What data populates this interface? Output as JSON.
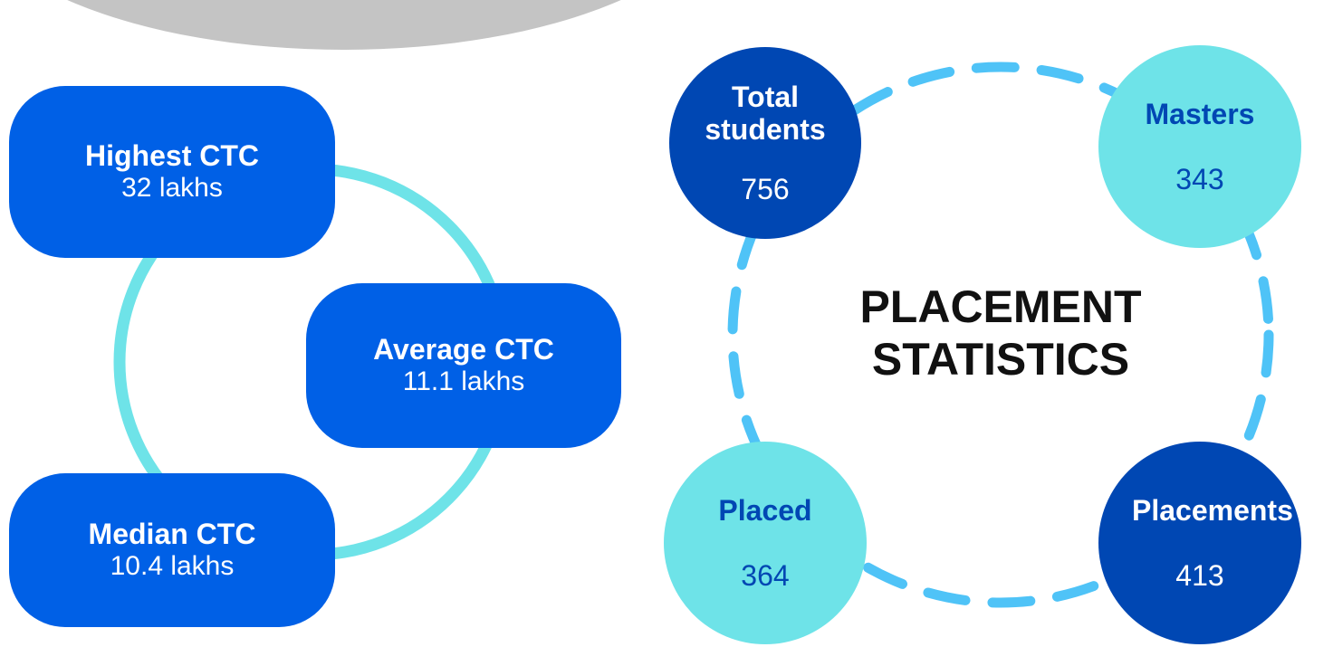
{
  "ctc": [
    {
      "label": "Highest CTC",
      "value": "32 lakhs"
    },
    {
      "label": "Average CTC",
      "value": "11.1 lakhs"
    },
    {
      "label": "Median CTC",
      "value": "10.4 lakhs"
    }
  ],
  "title": "PLACEMENT STATISTICS",
  "stats": [
    {
      "label": "Total students",
      "value": 756
    },
    {
      "label": "Masters",
      "value": 343
    },
    {
      "label": "Placed",
      "value": 364
    },
    {
      "label": "Placements",
      "value": 413
    }
  ]
}
